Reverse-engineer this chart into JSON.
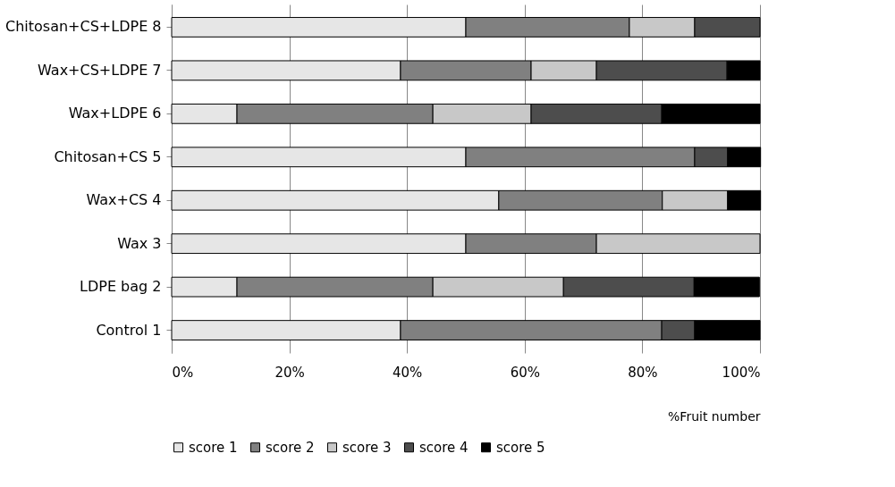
{
  "chart_data": {
    "type": "bar",
    "orientation": "horizontal",
    "stacked": true,
    "xlabel": "%Fruit number",
    "categories": [
      "Chitosan+CS+LDPE 8",
      "Wax+CS+LDPE 7",
      "Wax+LDPE 6",
      "Chitosan+CS 5",
      "Wax+CS 4",
      "Wax 3",
      "LDPE bag 2",
      "Control 1"
    ],
    "series": [
      {
        "name": "score 1",
        "color": "#e6e6e6",
        "values": [
          50,
          38.9,
          11.1,
          50,
          55.6,
          50,
          11.1,
          38.9
        ]
      },
      {
        "name": "score 2",
        "color": "#808080",
        "values": [
          27.8,
          22.2,
          33.3,
          38.9,
          27.8,
          22.2,
          33.3,
          44.4
        ]
      },
      {
        "name": "score 3",
        "color": "#c8c8c8",
        "values": [
          11.1,
          11.1,
          16.7,
          null,
          11.1,
          27.8,
          22.2,
          null
        ]
      },
      {
        "name": "score 4",
        "color": "#4d4d4d",
        "values": [
          11.1,
          22.2,
          22.2,
          5.6,
          null,
          null,
          22.2,
          5.6
        ]
      },
      {
        "name": "score 5",
        "color": "#000000",
        "values": [
          null,
          5.6,
          16.7,
          5.6,
          5.6,
          null,
          11.1,
          11.1
        ]
      }
    ],
    "xlim": [
      0,
      100
    ],
    "xticks": [
      {
        "value": 0,
        "label": "0%"
      },
      {
        "value": 20,
        "label": "20%"
      },
      {
        "value": 40,
        "label": "40%"
      },
      {
        "value": 60,
        "label": "60%"
      },
      {
        "value": 80,
        "label": "80%"
      },
      {
        "value": 100,
        "label": "100%"
      }
    ],
    "grid": "x",
    "legend": "bottom left"
  }
}
